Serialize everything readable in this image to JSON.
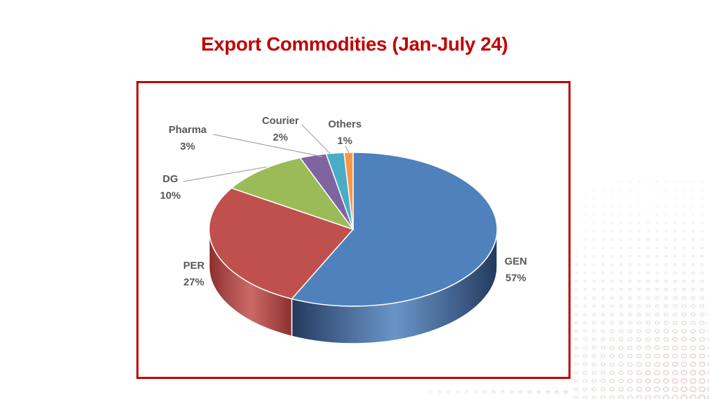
{
  "title": "Export Commodities (Jan-July 24)",
  "colors": {
    "title": "#c00000",
    "frame": "#c00000",
    "decoration": "#d9b3b3",
    "leader": "#a6a6a6"
  },
  "chart_data": {
    "type": "pie",
    "title": "Export Commodities (Jan-July 24)",
    "style": "3d",
    "slices": [
      {
        "label": "GEN",
        "pct_text": "57%",
        "value": 57,
        "color": "#4f81bd",
        "side": "#23395d"
      },
      {
        "label": "PER",
        "pct_text": "27%",
        "value": 27,
        "color": "#c0504d",
        "side": "#8c2f2c"
      },
      {
        "label": "DG",
        "pct_text": "10%",
        "value": 10,
        "color": "#9bbb59",
        "side": "#6f8a37"
      },
      {
        "label": "Pharma",
        "pct_text": "3%",
        "value": 3,
        "color": "#8064a2",
        "side": "#59427a"
      },
      {
        "label": "Courier",
        "pct_text": "2%",
        "value": 2,
        "color": "#4bacc6",
        "side": "#2e7d93"
      },
      {
        "label": "Others",
        "pct_text": "1%",
        "value": 1,
        "color": "#f79646",
        "side": "#b9661f"
      }
    ]
  }
}
